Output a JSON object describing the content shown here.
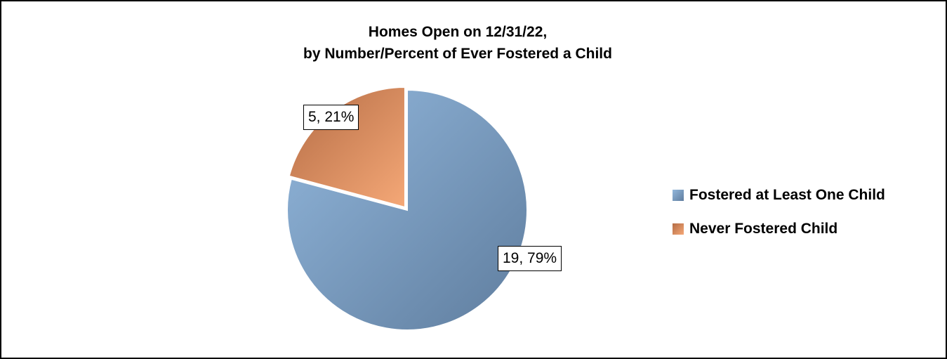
{
  "chart_data": {
    "type": "pie",
    "title": "Homes Open on 12/31/22,",
    "subtitle": "by Number/Percent of Ever Fostered a Child",
    "slices": [
      {
        "name": "Fostered at Least One Child",
        "value": 19,
        "percent": 79,
        "label": "19, 79%",
        "color_light": "#92b7dc",
        "color_dark": "#5f7d9e"
      },
      {
        "name": "Never Fostered Child",
        "value": 5,
        "percent": 21,
        "label": "5, 21%",
        "color_light": "#f5a877",
        "color_dark": "#b46c45"
      }
    ],
    "legend_position": "right"
  }
}
